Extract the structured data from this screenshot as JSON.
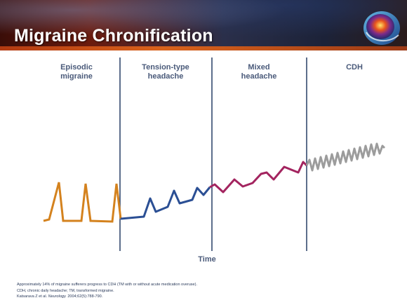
{
  "slide": {
    "title": "Migraine Chronification"
  },
  "columns": [
    {
      "line1": "Episodic",
      "line2": "migraine"
    },
    {
      "line1": "Tension-type",
      "line2": "headache"
    },
    {
      "line1": "Mixed",
      "line2": "headache"
    },
    {
      "line1": "CDH",
      "line2": ""
    }
  ],
  "axis": {
    "x_label": "Time"
  },
  "colors": {
    "episodic": "#d4821e",
    "tension": "#2b4f94",
    "mixed": "#a3245f",
    "cdh": "#9c9c9c",
    "divider": "#33496e",
    "label": "#4a5a7a"
  },
  "footnotes": {
    "line1": "Approximately 14% of migraine sufferers progress to CDH (TM with or without acute medication overuse).",
    "line2": "CDH, chronic daily headache; TM, transformed migraine.",
    "line3_authors": "Katsarava Z et al. ",
    "line3_journal": "Neurology.",
    "line3_rest": " 2004;62(5):788-790."
  }
}
